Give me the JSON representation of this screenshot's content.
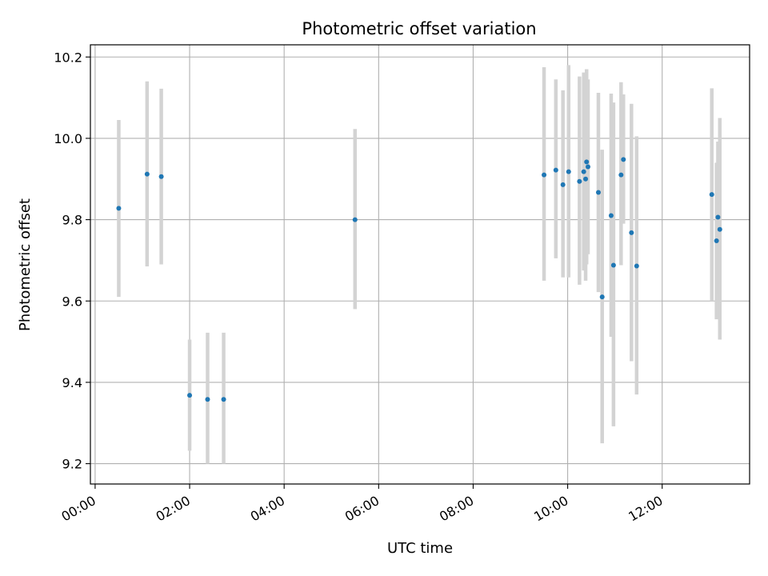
{
  "chart_data": {
    "type": "scatter",
    "title": "Photometric offset variation",
    "xlabel": "UTC time",
    "ylabel": "Photometric offset",
    "xlim_hours": [
      -0.1,
      13.85
    ],
    "ylim": [
      9.15,
      10.23
    ],
    "x_ticks": [
      {
        "h": 0,
        "label": "00:00"
      },
      {
        "h": 2,
        "label": "02:00"
      },
      {
        "h": 4,
        "label": "04:00"
      },
      {
        "h": 6,
        "label": "06:00"
      },
      {
        "h": 8,
        "label": "08:00"
      },
      {
        "h": 10,
        "label": "10:00"
      },
      {
        "h": 12,
        "label": "12:00"
      }
    ],
    "y_ticks": [
      {
        "v": 9.2,
        "label": "9.2"
      },
      {
        "v": 9.4,
        "label": "9.4"
      },
      {
        "v": 9.6,
        "label": "9.6"
      },
      {
        "v": 9.8,
        "label": "9.8"
      },
      {
        "v": 10.0,
        "label": "10.0"
      },
      {
        "v": 10.2,
        "label": "10.2"
      }
    ],
    "grid": true,
    "point_color": "#1f77b4",
    "errorbar_color": "#d3d3d3",
    "points": [
      {
        "h": 0.5,
        "y": 9.828,
        "lo": 9.61,
        "hi": 10.045
      },
      {
        "h": 1.1,
        "y": 9.912,
        "lo": 9.685,
        "hi": 10.14
      },
      {
        "h": 1.4,
        "y": 9.906,
        "lo": 9.69,
        "hi": 10.122
      },
      {
        "h": 2.0,
        "y": 9.368,
        "lo": 9.232,
        "hi": 9.505
      },
      {
        "h": 2.38,
        "y": 9.358,
        "lo": 9.2,
        "hi": 9.522
      },
      {
        "h": 2.72,
        "y": 9.358,
        "lo": 9.2,
        "hi": 9.522
      },
      {
        "h": 5.5,
        "y": 9.8,
        "lo": 9.58,
        "hi": 10.023
      },
      {
        "h": 9.5,
        "y": 9.91,
        "lo": 9.65,
        "hi": 10.175
      },
      {
        "h": 9.75,
        "y": 9.922,
        "lo": 9.705,
        "hi": 10.145
      },
      {
        "h": 9.9,
        "y": 9.886,
        "lo": 9.658,
        "hi": 10.118
      },
      {
        "h": 10.02,
        "y": 9.918,
        "lo": 9.658,
        "hi": 10.18
      },
      {
        "h": 10.25,
        "y": 9.894,
        "lo": 9.64,
        "hi": 10.152
      },
      {
        "h": 10.34,
        "y": 9.918,
        "lo": 9.675,
        "hi": 10.162
      },
      {
        "h": 10.38,
        "y": 9.9,
        "lo": 9.65,
        "hi": 10.16
      },
      {
        "h": 10.4,
        "y": 9.942,
        "lo": 9.69,
        "hi": 10.17
      },
      {
        "h": 10.43,
        "y": 9.93,
        "lo": 9.715,
        "hi": 10.145
      },
      {
        "h": 10.65,
        "y": 9.867,
        "lo": 9.622,
        "hi": 10.112
      },
      {
        "h": 10.73,
        "y": 9.61,
        "lo": 9.25,
        "hi": 9.972
      },
      {
        "h": 10.92,
        "y": 9.81,
        "lo": 9.512,
        "hi": 10.11
      },
      {
        "h": 10.97,
        "y": 9.688,
        "lo": 9.292,
        "hi": 10.088
      },
      {
        "h": 11.13,
        "y": 9.91,
        "lo": 9.688,
        "hi": 10.138
      },
      {
        "h": 11.18,
        "y": 9.948,
        "lo": 9.79,
        "hi": 10.108
      },
      {
        "h": 11.35,
        "y": 9.768,
        "lo": 9.452,
        "hi": 10.085
      },
      {
        "h": 11.46,
        "y": 9.686,
        "lo": 9.37,
        "hi": 10.005
      },
      {
        "h": 13.05,
        "y": 9.862,
        "lo": 9.6,
        "hi": 10.123
      },
      {
        "h": 13.15,
        "y": 9.748,
        "lo": 9.555,
        "hi": 9.94
      },
      {
        "h": 13.18,
        "y": 9.806,
        "lo": 9.62,
        "hi": 9.992
      },
      {
        "h": 13.22,
        "y": 9.776,
        "lo": 9.505,
        "hi": 10.05
      }
    ]
  }
}
